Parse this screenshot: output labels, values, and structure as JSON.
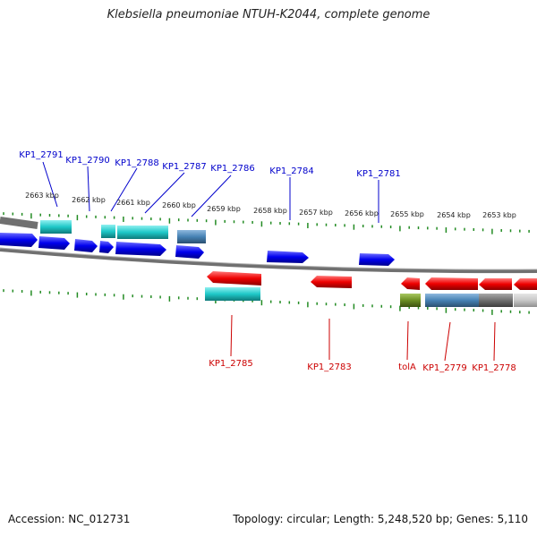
{
  "title": "Klebsiella pneumoniae NTUH-K2044, complete genome",
  "footer": {
    "accession": "Accession: NC_012731",
    "topology": "Topology: circular; Length: 5,248,520 bp; Genes: 5,110"
  },
  "colors": {
    "forward_gene": "#0000ee",
    "reverse_gene": "#ee0000",
    "rna_cyan": "#1ec8c8",
    "steel_blue": "#4682b4",
    "gray": "#707070",
    "olive": "#6b8e23",
    "tick_green": "#228b22",
    "label_blue": "#0000cc",
    "label_red": "#cc0000",
    "backbone": "#808080"
  },
  "scale_labels": [
    "2663 kbp",
    "2662 kbp",
    "2661 kbp",
    "2660 kbp",
    "2659 kbp",
    "2658 kbp",
    "2657 kbp",
    "2656 kbp",
    "2655 kbp",
    "2654 kbp",
    "2653 kbp"
  ],
  "top_labels": [
    "KP1_2791",
    "KP1_2790",
    "KP1_2788",
    "KP1_2787",
    "KP1_2786",
    "KP1_2784",
    "KP1_2781"
  ],
  "bottom_labels": [
    "KP1_2785",
    "KP1_2783",
    "tolA",
    "KP1_2779",
    "KP1_2778"
  ]
}
